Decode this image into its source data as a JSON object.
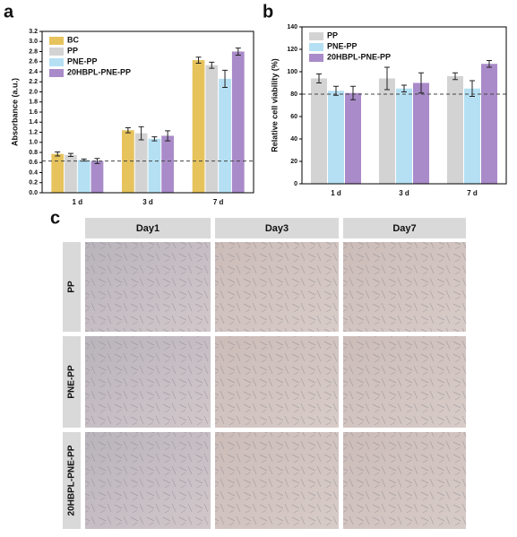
{
  "chart_data": [
    {
      "type": "bar",
      "panel": "a",
      "ylabel": "Absorbance (a.u.)",
      "categories": [
        "1 d",
        "3 d",
        "7 d"
      ],
      "series": [
        {
          "name": "BC",
          "color": "#e6c35c",
          "values": [
            0.77,
            1.24,
            2.63
          ],
          "errors": [
            0.04,
            0.05,
            0.06
          ]
        },
        {
          "name": "PP",
          "color": "#d3d3d3",
          "values": [
            0.75,
            1.18,
            2.53
          ],
          "errors": [
            0.03,
            0.13,
            0.06
          ]
        },
        {
          "name": "PNE-PP",
          "color": "#b5e0f3",
          "values": [
            0.65,
            1.07,
            2.26
          ],
          "errors": [
            0.02,
            0.04,
            0.17
          ]
        },
        {
          "name": "20HBPL-PNE-PP",
          "color": "#a98bc9",
          "values": [
            0.63,
            1.13,
            2.8
          ],
          "errors": [
            0.05,
            0.1,
            0.07
          ]
        }
      ],
      "ylim": [
        0,
        3.2
      ],
      "yticks": [
        {
          "value": 0,
          "label": "0.0"
        },
        0.2,
        0.4,
        0.6,
        0.8,
        {
          "value": 1,
          "label": "1.0"
        },
        1.2,
        1.4,
        1.6,
        1.8,
        {
          "value": 2,
          "label": "2.0"
        },
        2.2,
        2.4,
        2.6,
        2.8,
        {
          "value": 3,
          "label": "3.0"
        },
        3.2
      ],
      "reference_line": 0.63,
      "legend": "upper left"
    },
    {
      "type": "bar",
      "panel": "b",
      "ylabel": "Relative cell viability (%)",
      "categories": [
        "1 d",
        "3 d",
        "7 d"
      ],
      "series": [
        {
          "name": "PP",
          "color": "#d3d3d3",
          "values": [
            94,
            94,
            96
          ],
          "errors": [
            4,
            10,
            3
          ]
        },
        {
          "name": "PNE-PP",
          "color": "#b5e0f3",
          "values": [
            83,
            85,
            85
          ],
          "errors": [
            4,
            3,
            7
          ]
        },
        {
          "name": "20HBPL-PNE-PP",
          "color": "#a98bc9",
          "values": [
            81,
            90,
            107
          ],
          "errors": [
            6,
            9,
            3
          ]
        }
      ],
      "ylim": [
        0,
        140
      ],
      "yticks": [
        0,
        20,
        40,
        60,
        80,
        100,
        120,
        140
      ],
      "reference_line": 80,
      "legend": "upper left"
    }
  ],
  "image_grid": {
    "panel": "c",
    "columns": [
      "Day1",
      "Day3",
      "Day7"
    ],
    "rows": [
      "PP",
      "PNE-PP",
      "20HBPL-PNE-PP"
    ]
  }
}
